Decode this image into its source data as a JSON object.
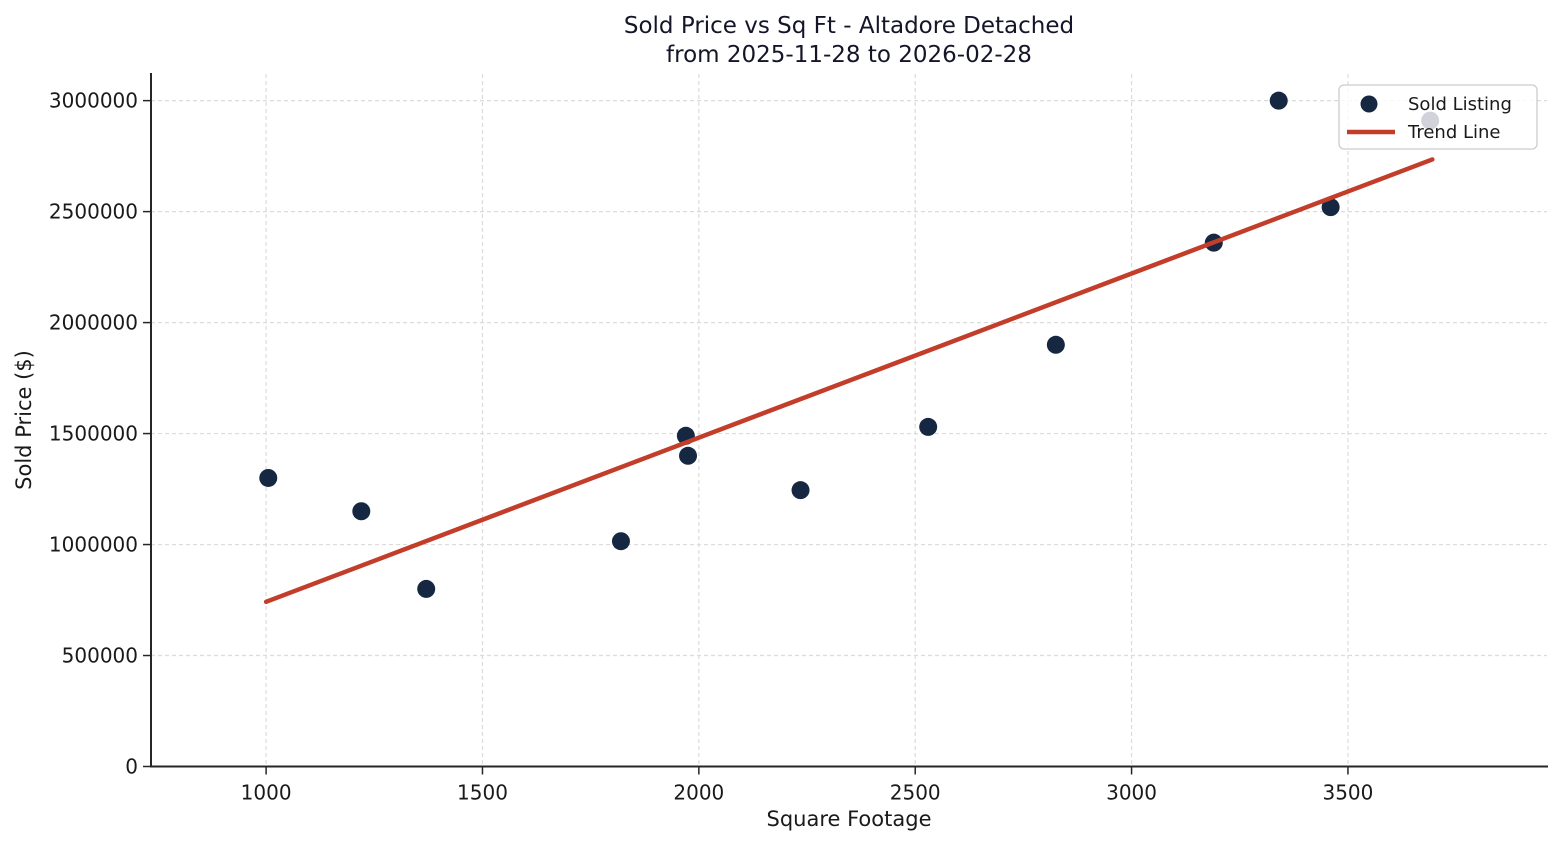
{
  "chart_data": {
    "type": "scatter",
    "title_line1": "Sold Price vs Sq Ft - Altadore Detached",
    "title_line2": "from 2025-11-28 to 2026-02-28",
    "xlabel": "Square Footage",
    "ylabel": "Sold Price ($)",
    "xlim": [
      734,
      3960
    ],
    "ylim": [
      0,
      3120000
    ],
    "x_ticks": [
      1000,
      1500,
      2000,
      2500,
      3000,
      3500
    ],
    "y_ticks": [
      0,
      500000,
      1000000,
      1500000,
      2000000,
      2500000,
      3000000
    ],
    "grid": true,
    "grid_style": "dashed",
    "legend_position": "upper right",
    "series": [
      {
        "name": "Sold Listing",
        "type": "scatter",
        "color": "#152741",
        "marker_radius": 9,
        "points": [
          [
            1005,
            1300000
          ],
          [
            1220,
            1150000
          ],
          [
            1370,
            800000
          ],
          [
            1820,
            1015000
          ],
          [
            1970,
            1490000
          ],
          [
            1975,
            1400000
          ],
          [
            2235,
            1245000
          ],
          [
            2530,
            1530000
          ],
          [
            2825,
            1900000
          ],
          [
            3190,
            2360000
          ],
          [
            3340,
            3000000
          ],
          [
            3460,
            2520000
          ],
          [
            3690,
            2910000
          ]
        ]
      },
      {
        "name": "Trend Line",
        "type": "line",
        "color": "#c33d2b",
        "points": [
          [
            1000,
            742000
          ],
          [
            3695,
            2735000
          ]
        ]
      }
    ]
  },
  "colors": {
    "background": "#ffffff",
    "grid": "#dbdbdb",
    "spine": "#262626",
    "text": "#1a1a1a"
  }
}
